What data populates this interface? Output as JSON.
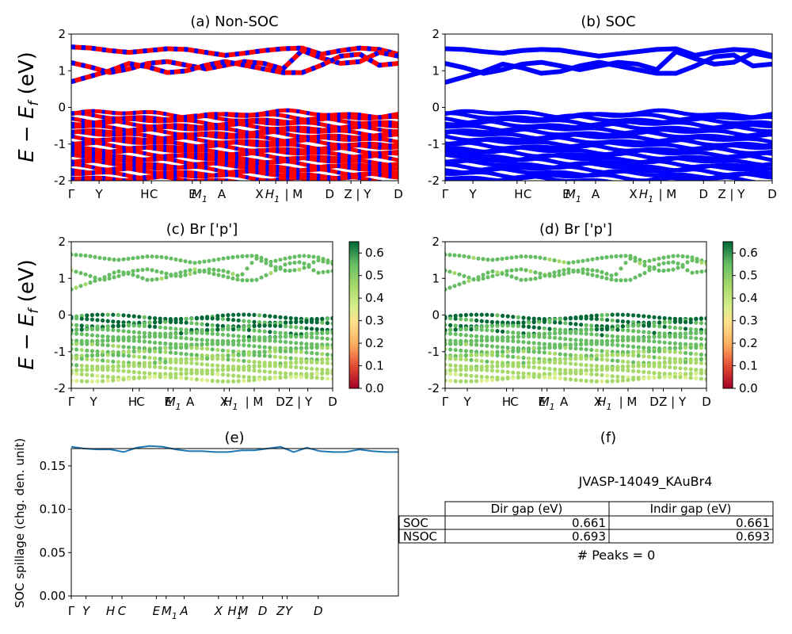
{
  "ylabel_top": "E − E",
  "ylabel_top_sub": "f",
  "ylabel_unit": " (eV)",
  "kpath_labels": [
    "Γ",
    "Y",
    "H",
    "C",
    "E",
    "M",
    "A",
    "X",
    "H",
    "M",
    "D",
    "Z",
    "Y",
    "D"
  ],
  "kpath_subscripts": {
    "M1": "1",
    "H1": "1"
  },
  "panels": {
    "a": {
      "title": "(a) Non-SOC"
    },
    "b": {
      "title": "(b) SOC"
    },
    "c": {
      "title": "(c)  Br ['p']"
    },
    "d": {
      "title": "(d) Br ['p']"
    },
    "e": {
      "title": "(e)",
      "ylabel": "SOC spillage (chg. den. unit)"
    },
    "f": {
      "title": "(f)",
      "material": "JVASP-14049_KAuBr4",
      "peaks": "# Peaks = 0"
    }
  },
  "colorbar": {
    "ticks": [
      "0.0",
      "0.1",
      "0.2",
      "0.3",
      "0.4",
      "0.5",
      "0.6"
    ],
    "colormap": "RdYlGn"
  },
  "colors": {
    "band_up": "#ff0000",
    "band_down": "#0000ff",
    "spillage_line": "#1f77b4"
  },
  "table": {
    "headers": [
      "",
      "Dir gap (eV)",
      "Indir gap (eV)"
    ],
    "rows": [
      {
        "label": "SOC",
        "dir": "0.661",
        "indir": "0.661"
      },
      {
        "label": "NSOC",
        "dir": "0.693",
        "indir": "0.693"
      }
    ]
  },
  "chart_data": [
    {
      "type": "line",
      "panel": "a",
      "title": "(a) Non-SOC",
      "ylabel": "E − E_f (eV)",
      "ylim": [
        -2,
        2
      ],
      "yticks": [
        -2,
        -1,
        0,
        1,
        2
      ],
      "xticklabels": [
        "Γ",
        "Y",
        "HC",
        "E",
        "M1",
        "A",
        "X",
        "H1 | M",
        "D",
        "Z | Y",
        "D"
      ],
      "series": [
        {
          "values": [
            1.65,
            1.62,
            1.55,
            1.5,
            1.55,
            1.6,
            1.58,
            1.5,
            1.42,
            1.48,
            1.55,
            1.6,
            1.62,
            1.45,
            1.55,
            1.62,
            1.58,
            1.45
          ]
        },
        {
          "values": [
            1.22,
            1.1,
            0.95,
            1.05,
            1.2,
            1.25,
            1.15,
            1.05,
            1.15,
            1.25,
            1.2,
            1.05,
            1.55,
            1.35,
            1.2,
            1.25,
            1.5,
            1.4
          ]
        },
        {
          "values": [
            0.7,
            0.85,
            1.0,
            1.2,
            1.1,
            0.95,
            1.0,
            1.15,
            1.25,
            1.15,
            1.05,
            0.95,
            0.95,
            1.15,
            1.4,
            1.45,
            1.15,
            1.2
          ]
        }
      ]
    },
    {
      "type": "line",
      "panel": "b",
      "title": "(b) SOC",
      "ylim": [
        -2,
        2
      ],
      "yticks": [
        -2,
        -1,
        0,
        1,
        2
      ],
      "xticklabels": [
        "Γ",
        "Y",
        "HC",
        "E",
        "M1",
        "A",
        "X",
        "H1 | M",
        "D",
        "Z | Y",
        "D"
      ],
      "series": [
        {
          "values": [
            1.6,
            1.58,
            1.52,
            1.48,
            1.55,
            1.58,
            1.56,
            1.48,
            1.4,
            1.46,
            1.52,
            1.58,
            1.6,
            1.42,
            1.52,
            1.58,
            1.55,
            1.42
          ]
        },
        {
          "values": [
            1.2,
            1.08,
            0.93,
            1.03,
            1.18,
            1.23,
            1.13,
            1.03,
            1.13,
            1.23,
            1.18,
            1.03,
            1.52,
            1.33,
            1.18,
            1.23,
            1.48,
            1.38
          ]
        },
        {
          "values": [
            0.68,
            0.83,
            0.98,
            1.18,
            1.08,
            0.93,
            0.98,
            1.13,
            1.23,
            1.13,
            1.03,
            0.93,
            0.93,
            1.13,
            1.38,
            1.43,
            1.13,
            1.18
          ]
        }
      ]
    },
    {
      "type": "scatter",
      "panel": "c",
      "title": "(c)  Br ['p']",
      "ylim": [
        -2,
        2
      ],
      "clim": [
        0,
        0.65
      ],
      "xticklabels": [
        "Γ",
        "Y",
        "HC",
        "E",
        "M1",
        "A",
        "X",
        "H1 | M",
        "D",
        "Z | Y",
        "D"
      ]
    },
    {
      "type": "scatter",
      "panel": "d",
      "title": "(d) Br ['p']",
      "ylim": [
        -2,
        2
      ],
      "clim": [
        0,
        0.65
      ],
      "xticklabels": [
        "Γ",
        "Y",
        "HC",
        "E",
        "M1",
        "A",
        "X",
        "H1 | M",
        "D",
        "Z | Y",
        "D"
      ]
    },
    {
      "type": "line",
      "panel": "e",
      "title": "(e)",
      "ylabel": "SOC spillage (chg. den. unit)",
      "ylim": [
        0,
        0.17
      ],
      "yticks": [
        0.0,
        0.05,
        0.1,
        0.15
      ],
      "xticklabels": [
        "Γ",
        "Y",
        "H",
        "C",
        "E",
        "M1",
        "A",
        "X",
        "H1",
        "M",
        "D",
        "Z",
        "Y",
        "D"
      ],
      "series": [
        {
          "values": [
            0.172,
            0.17,
            0.169,
            0.169,
            0.166,
            0.171,
            0.173,
            0.172,
            0.169,
            0.167,
            0.167,
            0.166,
            0.166,
            0.168,
            0.168,
            0.17,
            0.172,
            0.166,
            0.171,
            0.167,
            0.166,
            0.166,
            0.169,
            0.167,
            0.166,
            0.166
          ]
        }
      ]
    },
    {
      "type": "table",
      "panel": "f",
      "columns": [
        "",
        "Dir gap (eV)",
        "Indir gap (eV)"
      ],
      "rows": [
        [
          "SOC",
          "0.661",
          "0.661"
        ],
        [
          "NSOC",
          "0.693",
          "0.693"
        ]
      ]
    }
  ]
}
